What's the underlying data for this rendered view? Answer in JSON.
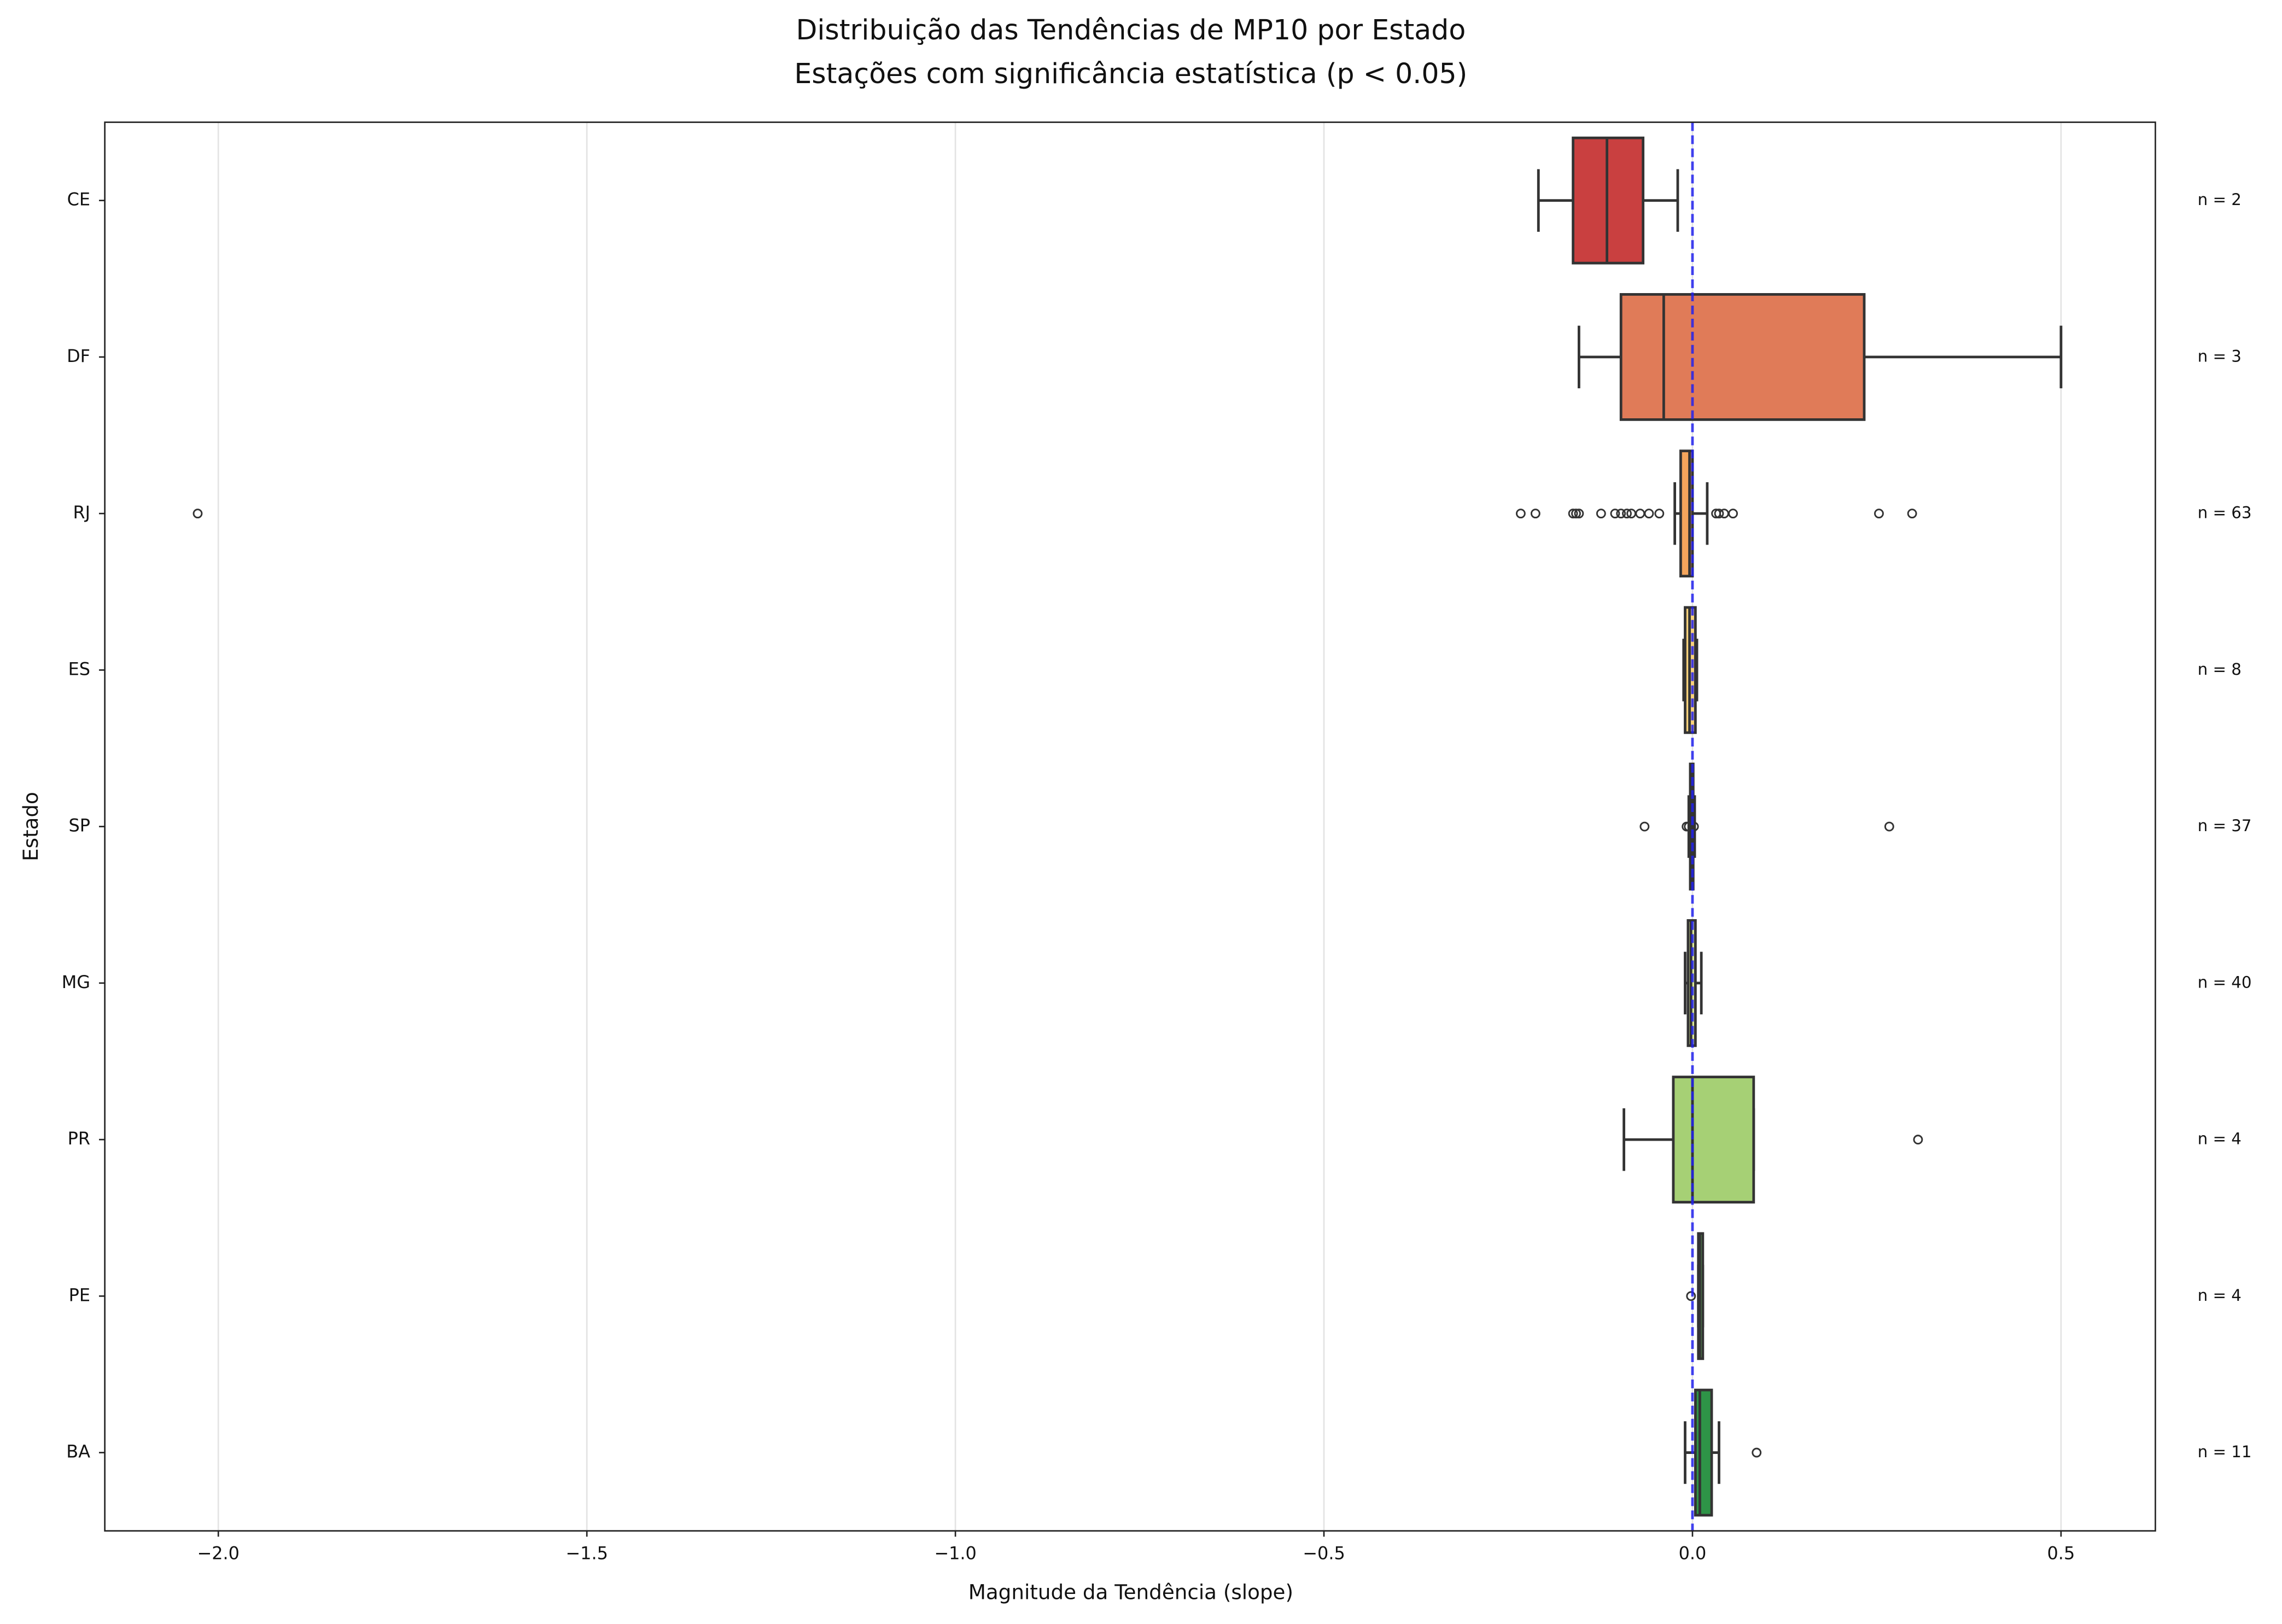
{
  "chart_data": {
    "type": "boxplot",
    "title": "Distribuição das Tendências de MP10 por Estado",
    "subtitle": "Estações com significância estatística (p < 0.05)",
    "xlabel": "Magnitude da Tendência (slope)",
    "ylabel": "Estado",
    "orientation": "horizontal",
    "categories": [
      "CE",
      "DF",
      "RJ",
      "ES",
      "SP",
      "MG",
      "PR",
      "PE",
      "BA"
    ],
    "colors": [
      "#c94040",
      "#e07b58",
      "#f4a55c",
      "#f8d27c",
      "#f6f0a0",
      "#dde99a",
      "#a6d075",
      "#66bb62",
      "#2e9447"
    ],
    "boxes": [
      {
        "whislo": -0.209,
        "q1": -0.162,
        "med": -0.116,
        "q3": -0.067,
        "whishi": -0.02,
        "fliers": []
      },
      {
        "whislo": -0.154,
        "q1": -0.097,
        "med": -0.039,
        "q3": 0.233,
        "whishi": 0.5,
        "fliers": []
      },
      {
        "whislo": -0.024,
        "q1": -0.016,
        "med": -0.004,
        "q3": 0.0,
        "whishi": 0.02,
        "fliers": [
          -2.028,
          -0.233,
          -0.213,
          -0.162,
          -0.158,
          -0.154,
          -0.124,
          -0.105,
          -0.097,
          -0.089,
          -0.083,
          -0.071,
          -0.059,
          -0.045,
          0.032,
          0.036,
          0.043,
          0.055,
          0.253,
          0.298
        ]
      },
      {
        "whislo": -0.012,
        "q1": -0.01,
        "med": -0.004,
        "q3": 0.004,
        "whishi": 0.006,
        "fliers": []
      },
      {
        "whislo": -0.005,
        "q1": -0.003,
        "med": -0.001,
        "q3": 0.001,
        "whishi": 0.003,
        "fliers": [
          -0.065,
          -0.008,
          -0.005,
          0.002,
          0.267
        ]
      },
      {
        "whislo": -0.01,
        "q1": -0.006,
        "med": -0.002,
        "q3": 0.004,
        "whishi": 0.012,
        "fliers": []
      },
      {
        "whislo": -0.093,
        "q1": -0.026,
        "med": 0.0,
        "q3": 0.083,
        "whishi": 0.083,
        "fliers": [
          0.306
        ]
      },
      {
        "whislo": 0.008,
        "q1": 0.008,
        "med": 0.01,
        "q3": 0.014,
        "whishi": 0.014,
        "fliers": [
          -0.002
        ]
      },
      {
        "whislo": -0.01,
        "q1": 0.004,
        "med": 0.01,
        "q3": 0.026,
        "whishi": 0.036,
        "fliers": [
          0.087
        ]
      }
    ],
    "annotations": [
      "n = 2",
      "n = 3",
      "n = 63",
      "n = 8",
      "n = 37",
      "n = 40",
      "n = 4",
      "n = 4",
      "n = 11"
    ],
    "reference_line": 0,
    "xlim": [
      -2.154,
      0.628
    ],
    "xticks": [
      {
        "value": -2.0,
        "label": "−2.0"
      },
      {
        "value": -1.5,
        "label": "−1.5"
      },
      {
        "value": -1.0,
        "label": "−1.0"
      },
      {
        "value": -0.5,
        "label": "−0.5"
      },
      {
        "value": 0.0,
        "label": "0.0"
      },
      0.5
    ],
    "grid": true
  }
}
